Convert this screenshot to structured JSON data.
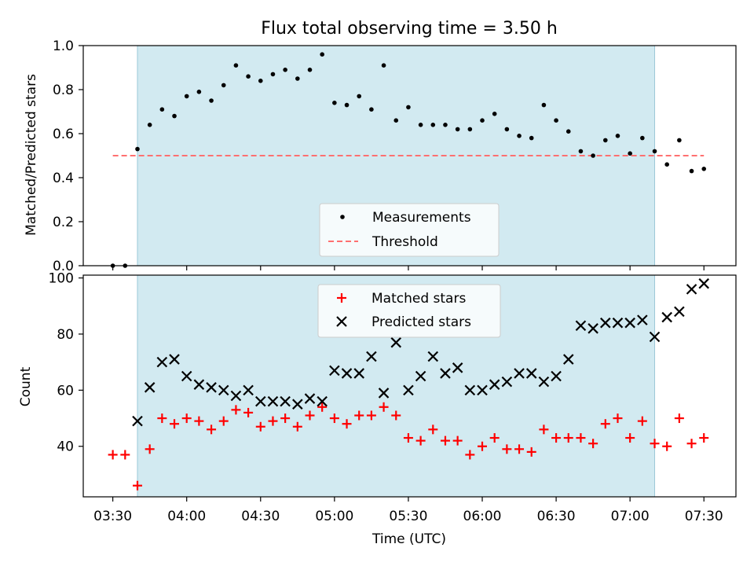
{
  "chart_data": {
    "title": "Flux total observing time = 3.50 h",
    "xlabel": "Time (UTC)",
    "x_ticks": [
      "03:30",
      "04:00",
      "04:30",
      "05:00",
      "05:30",
      "06:00",
      "06:30",
      "07:00",
      "07:30"
    ],
    "x_tick_minutes": [
      210,
      240,
      270,
      300,
      330,
      360,
      390,
      420,
      450
    ],
    "xlim_minutes": [
      198,
      463
    ],
    "shaded_span_minutes": [
      220,
      430
    ],
    "colors": {
      "shade": "#add8e6",
      "measurements": "#000000",
      "threshold": "#ff7070",
      "matched": "#ff0000",
      "predicted": "#000000"
    },
    "top": {
      "type": "scatter",
      "ylabel": "Matched/Predicted stars",
      "ylim": [
        0,
        1.0
      ],
      "yticks": [
        "0.0",
        "0.2",
        "0.4",
        "0.6",
        "0.8",
        "1.0"
      ],
      "legend_placement": "lower-center",
      "series": [
        {
          "name": "Measurements",
          "marker": "dot",
          "x": [
            210,
            215,
            220,
            225,
            230,
            235,
            240,
            245,
            250,
            255,
            260,
            265,
            270,
            275,
            280,
            285,
            290,
            295,
            300,
            305,
            310,
            315,
            320,
            325,
            330,
            335,
            340,
            345,
            350,
            355,
            360,
            365,
            370,
            375,
            380,
            385,
            390,
            395,
            400,
            405,
            410,
            415,
            420,
            425,
            430,
            435,
            440,
            445,
            450
          ],
          "y": [
            0.0,
            0.0,
            0.53,
            0.64,
            0.71,
            0.68,
            0.77,
            0.79,
            0.75,
            0.82,
            0.91,
            0.86,
            0.84,
            0.87,
            0.89,
            0.85,
            0.89,
            0.96,
            0.74,
            0.73,
            0.77,
            0.71,
            0.91,
            0.66,
            0.72,
            0.64,
            0.64,
            0.64,
            0.62,
            0.62,
            0.66,
            0.69,
            0.62,
            0.59,
            0.58,
            0.73,
            0.66,
            0.61,
            0.52,
            0.5,
            0.57,
            0.59,
            0.51,
            0.58,
            0.52,
            0.46,
            0.57,
            0.43,
            0.44
          ]
        },
        {
          "name": "Threshold",
          "style": "dashed",
          "x": [
            210,
            450
          ],
          "y": [
            0.5,
            0.5
          ]
        }
      ]
    },
    "bottom": {
      "type": "scatter",
      "ylabel": "Count",
      "ylim": [
        22,
        101
      ],
      "yticks": [
        "40",
        "60",
        "80",
        "100"
      ],
      "ytick_values": [
        40,
        60,
        80,
        100
      ],
      "legend_placement": "top-center",
      "series": [
        {
          "name": "Matched stars",
          "marker": "plus",
          "x": [
            210,
            215,
            220,
            225,
            230,
            235,
            240,
            245,
            250,
            255,
            260,
            265,
            270,
            275,
            280,
            285,
            290,
            295,
            300,
            305,
            310,
            315,
            320,
            325,
            330,
            335,
            340,
            345,
            350,
            355,
            360,
            365,
            370,
            375,
            380,
            385,
            390,
            395,
            400,
            405,
            410,
            415,
            420,
            425,
            430,
            435,
            440,
            445,
            450
          ],
          "y": [
            37,
            37,
            26,
            39,
            50,
            48,
            50,
            49,
            46,
            49,
            53,
            52,
            47,
            49,
            50,
            47,
            51,
            54,
            50,
            48,
            51,
            51,
            54,
            51,
            43,
            42,
            46,
            42,
            42,
            37,
            40,
            43,
            39,
            39,
            38,
            46,
            43,
            43,
            43,
            41,
            48,
            50,
            43,
            49,
            41,
            40,
            50,
            41,
            43
          ]
        },
        {
          "name": "Predicted stars",
          "marker": "x",
          "x": [
            220,
            225,
            230,
            235,
            240,
            245,
            250,
            255,
            260,
            265,
            270,
            275,
            280,
            285,
            290,
            295,
            300,
            305,
            310,
            315,
            320,
            325,
            330,
            335,
            340,
            345,
            350,
            355,
            360,
            365,
            370,
            375,
            380,
            385,
            390,
            395,
            400,
            405,
            410,
            415,
            420,
            425,
            430,
            435,
            440,
            445,
            450
          ],
          "y": [
            49,
            61,
            70,
            71,
            65,
            62,
            61,
            60,
            58,
            60,
            56,
            56,
            56,
            55,
            57,
            56,
            67,
            66,
            66,
            72,
            59,
            77,
            60,
            65,
            72,
            66,
            68,
            60,
            60,
            62,
            63,
            66,
            66,
            63,
            65,
            71,
            83,
            82,
            84,
            84,
            84,
            85,
            79,
            86,
            88,
            96,
            98
          ]
        }
      ]
    }
  }
}
